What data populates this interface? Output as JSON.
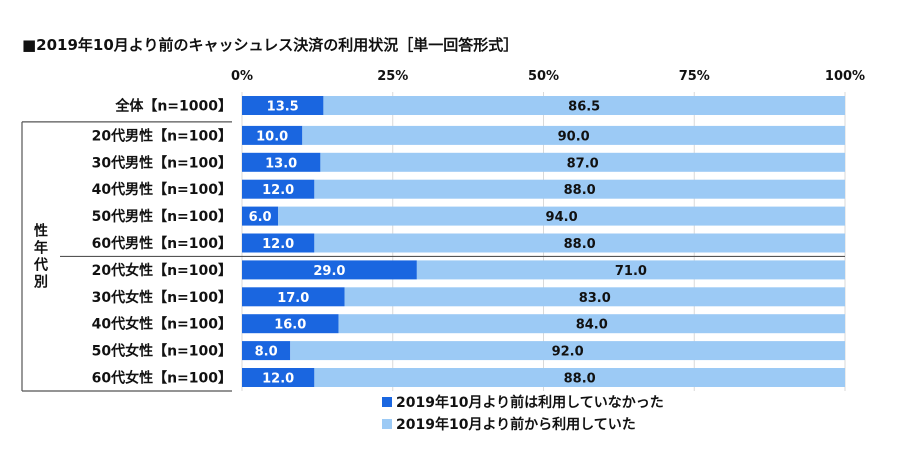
{
  "title": "■2019年10月より前のキャッシュレス決済の利用状況［単一回答形式］",
  "group_label": "性年代別",
  "chart_data": {
    "type": "bar",
    "orientation": "horizontal",
    "stacked": true,
    "xlim": [
      0,
      100
    ],
    "x_ticks": [
      "0%",
      "25%",
      "50%",
      "75%",
      "100%"
    ],
    "categories": [
      "全体【n=1000】",
      "20代男性【n=100】",
      "30代男性【n=100】",
      "40代男性【n=100】",
      "50代男性【n=100】",
      "60代男性【n=100】",
      "20代女性【n=100】",
      "30代女性【n=100】",
      "40代女性【n=100】",
      "50代女性【n=100】",
      "60代女性【n=100】"
    ],
    "series": [
      {
        "name": "2019年10月より前は利用していなかった",
        "color": "#1a66e0",
        "values": [
          13.5,
          10.0,
          13.0,
          12.0,
          6.0,
          12.0,
          29.0,
          17.0,
          16.0,
          8.0,
          12.0
        ],
        "labels": [
          "13.5",
          "10.0",
          "13.0",
          "12.0",
          "6.0",
          "12.0",
          "29.0",
          "17.0",
          "16.0",
          "8.0",
          "12.0"
        ]
      },
      {
        "name": "2019年10月より前から利用していた",
        "color": "#9ccaf5",
        "values": [
          86.5,
          90.0,
          87.0,
          88.0,
          94.0,
          88.0,
          71.0,
          83.0,
          84.0,
          92.0,
          88.0
        ],
        "labels": [
          "86.5",
          "90.0",
          "87.0",
          "88.0",
          "94.0",
          "88.0",
          "71.0",
          "83.0",
          "84.0",
          "92.0",
          "88.0"
        ]
      }
    ],
    "legend_position": "bottom-center"
  }
}
